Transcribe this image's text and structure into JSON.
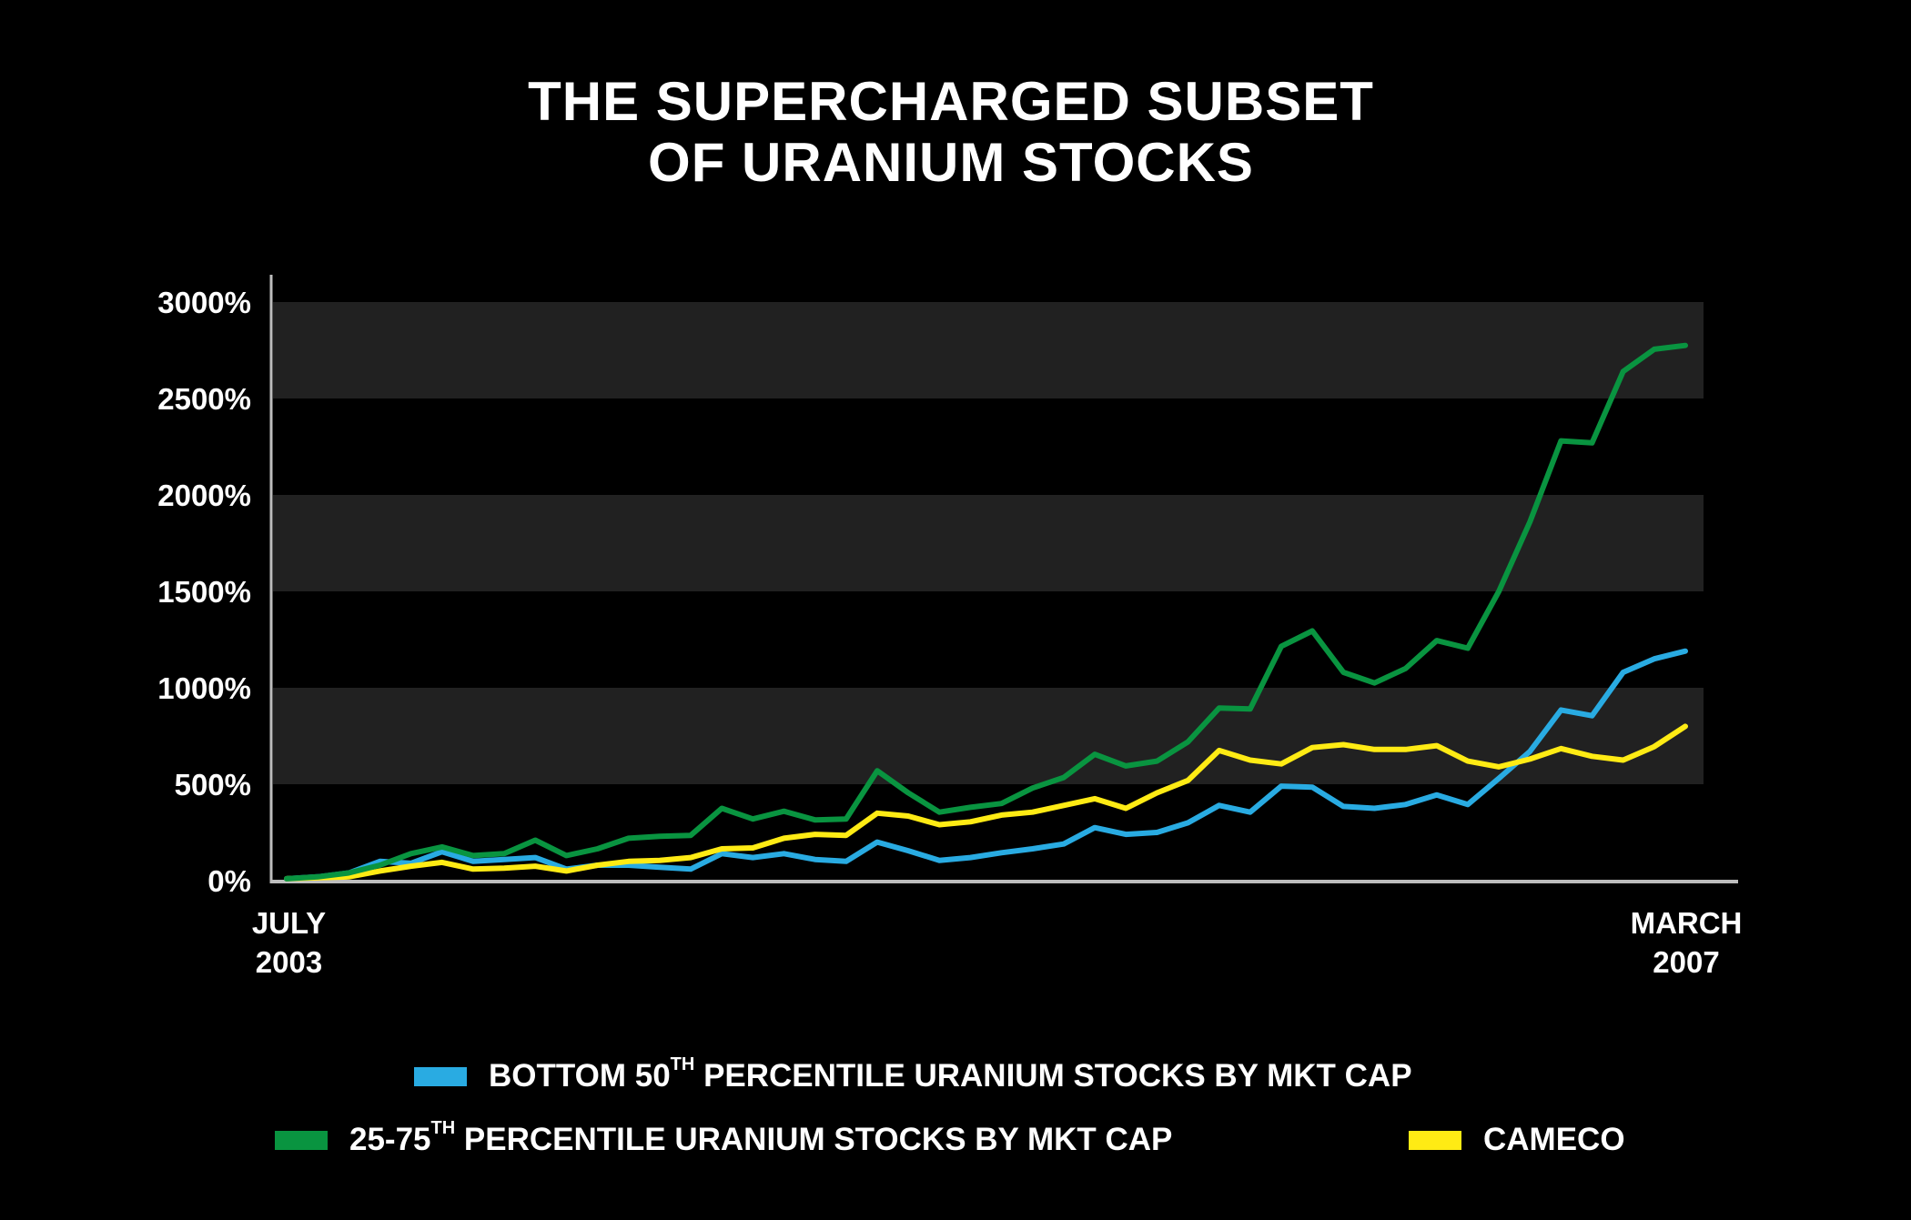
{
  "title": {
    "line1": "THE SUPERCHARGED SUBSET",
    "line2": "OF URANIUM STOCKS"
  },
  "chart_data": {
    "type": "line",
    "title": "THE SUPERCHARGED SUBSET OF URANIUM STOCKS",
    "xlabel": "",
    "ylabel": "",
    "x_start_label": [
      "JULY",
      "2003"
    ],
    "x_end_label": [
      "MARCH",
      "2007"
    ],
    "ylim": [
      0,
      3000
    ],
    "yticks": [
      "0%",
      "500%",
      "1000%",
      "1500%",
      "2000%",
      "2500%",
      "3000%"
    ],
    "y_tick_values": [
      0,
      500,
      1000,
      1500,
      2000,
      2500,
      3000
    ],
    "banded_background": true,
    "legend_position": "bottom",
    "series": [
      {
        "name": "BOTTOM 50TH PERCENTILE URANIUM STOCKS BY MKT CAP",
        "color": "#29abe2",
        "values": [
          10,
          20,
          40,
          100,
          90,
          150,
          100,
          110,
          120,
          60,
          80,
          80,
          70,
          60,
          140,
          120,
          140,
          110,
          100,
          200,
          155,
          105,
          120,
          145,
          165,
          190,
          275,
          240,
          250,
          300,
          390,
          355,
          490,
          485,
          385,
          375,
          395,
          445,
          395,
          530,
          670,
          885,
          855,
          1080,
          1150,
          1190
        ]
      },
      {
        "name": "25-75TH PERCENTILE URANIUM STOCKS BY MKT CAP",
        "color": "#099440",
        "values": [
          10,
          20,
          40,
          80,
          140,
          175,
          130,
          140,
          210,
          130,
          165,
          220,
          230,
          235,
          375,
          320,
          360,
          315,
          320,
          570,
          455,
          355,
          380,
          400,
          480,
          535,
          655,
          595,
          620,
          720,
          895,
          890,
          1215,
          1295,
          1080,
          1025,
          1100,
          1245,
          1205,
          1500,
          1860,
          2280,
          2270,
          2640,
          2755,
          2775
        ]
      },
      {
        "name": "CAMECO",
        "color": "#ffeb14",
        "values": [
          10,
          15,
          20,
          50,
          75,
          95,
          60,
          65,
          75,
          50,
          80,
          100,
          105,
          120,
          165,
          170,
          220,
          240,
          235,
          350,
          335,
          290,
          305,
          340,
          355,
          390,
          425,
          375,
          455,
          520,
          675,
          625,
          605,
          690,
          705,
          680,
          680,
          700,
          620,
          590,
          630,
          685,
          645,
          625,
          695,
          800
        ]
      }
    ]
  },
  "legend": [
    {
      "label_main": "BOTTOM 50",
      "label_sup": "TH",
      "label_rest": " PERCENTILE URANIUM STOCKS BY MKT CAP",
      "color": "#29abe2"
    },
    {
      "label_main": "25-75",
      "label_sup": "TH",
      "label_rest": " PERCENTILE URANIUM STOCKS BY MKT CAP",
      "color": "#099440"
    },
    {
      "label_main": "CAMECO",
      "label_sup": "",
      "label_rest": "",
      "color": "#ffeb14"
    }
  ]
}
